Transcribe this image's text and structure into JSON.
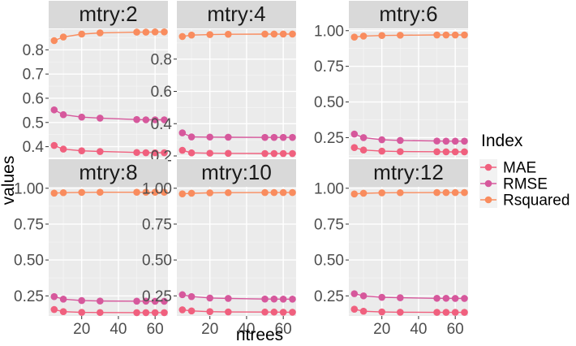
{
  "chart_data": {
    "type": "line",
    "xlabel": "ntrees",
    "ylabel": "values",
    "x": [
      5,
      10,
      20,
      30,
      50,
      55,
      60,
      65
    ],
    "xlim": [
      2,
      67
    ],
    "xticks": [
      20,
      40,
      60
    ],
    "legend": {
      "title": "Index",
      "position": "right",
      "entries": [
        {
          "name": "MAE",
          "color": "#f0607e"
        },
        {
          "name": "RMSE",
          "color": "#d6589c"
        },
        {
          "name": "Rsquared",
          "color": "#f98c5e"
        }
      ]
    },
    "panels": [
      {
        "title": "mtry:2",
        "ylim": [
          0.355,
          0.885
        ],
        "yticks": [
          0.4,
          0.5,
          0.6,
          0.7,
          0.8
        ],
        "ytick_labels": [
          "0.4",
          "0.5",
          "0.6",
          "0.7",
          "0.8"
        ],
        "series": [
          {
            "name": "MAE",
            "values": [
              0.405,
              0.39,
              0.383,
              0.38,
              0.376,
              0.375,
              0.375,
              0.375
            ]
          },
          {
            "name": "RMSE",
            "values": [
              0.552,
              0.532,
              0.522,
              0.518,
              0.512,
              0.511,
              0.511,
              0.511
            ]
          },
          {
            "name": "Rsquared",
            "values": [
              0.838,
              0.853,
              0.865,
              0.87,
              0.873,
              0.873,
              0.874,
              0.874
            ]
          }
        ]
      },
      {
        "title": "mtry:4",
        "ylim": [
          0.19,
          0.985
        ],
        "yticks": [
          0.2,
          0.4,
          0.6,
          0.8
        ],
        "ytick_labels": [
          "0.2",
          "0.4",
          "0.6",
          "0.8"
        ],
        "series": [
          {
            "name": "MAE",
            "values": [
              0.235,
              0.219,
              0.217,
              0.216,
              0.215,
              0.215,
              0.215,
              0.215
            ]
          },
          {
            "name": "RMSE",
            "values": [
              0.343,
              0.318,
              0.317,
              0.316,
              0.315,
              0.315,
              0.315,
              0.315
            ]
          },
          {
            "name": "Rsquared",
            "values": [
              0.94,
              0.949,
              0.952,
              0.954,
              0.955,
              0.955,
              0.955,
              0.955
            ]
          }
        ]
      },
      {
        "title": "mtry:6",
        "ylim": [
          0.11,
          1.01
        ],
        "yticks": [
          0.25,
          0.5,
          0.75,
          1.0
        ],
        "ytick_labels": [
          "0.25",
          "0.50",
          "0.75",
          "1.00"
        ],
        "series": [
          {
            "name": "MAE",
            "values": [
              0.18,
              0.163,
              0.155,
              0.152,
              0.151,
              0.15,
              0.15,
              0.15
            ]
          },
          {
            "name": "RMSE",
            "values": [
              0.275,
              0.25,
              0.235,
              0.23,
              0.226,
              0.225,
              0.225,
              0.225
            ]
          },
          {
            "name": "Rsquared",
            "values": [
              0.955,
              0.962,
              0.966,
              0.968,
              0.97,
              0.97,
              0.97,
              0.97
            ]
          }
        ]
      },
      {
        "title": "mtry:8",
        "ylim": [
          0.11,
          1.01
        ],
        "yticks": [
          0.25,
          0.5,
          0.75,
          1.0
        ],
        "ytick_labels": [
          "0.25",
          "0.50",
          "0.75",
          "1.00"
        ],
        "series": [
          {
            "name": "MAE",
            "values": [
              0.155,
              0.14,
              0.135,
              0.134,
              0.133,
              0.133,
              0.133,
              0.133
            ]
          },
          {
            "name": "RMSE",
            "values": [
              0.245,
              0.227,
              0.217,
              0.214,
              0.213,
              0.213,
              0.212,
              0.212
            ]
          },
          {
            "name": "Rsquared",
            "values": [
              0.966,
              0.969,
              0.971,
              0.972,
              0.972,
              0.972,
              0.972,
              0.972
            ]
          }
        ]
      },
      {
        "title": "mtry:10",
        "ylim": [
          0.11,
          1.01
        ],
        "yticks": [
          0.25,
          0.5,
          0.75,
          1.0
        ],
        "ytick_labels": [
          "0.25",
          "0.50",
          "0.75",
          "1.00"
        ],
        "series": [
          {
            "name": "MAE",
            "values": [
              0.153,
              0.145,
              0.14,
              0.138,
              0.137,
              0.137,
              0.136,
              0.136
            ]
          },
          {
            "name": "RMSE",
            "values": [
              0.258,
              0.245,
              0.235,
              0.232,
              0.228,
              0.228,
              0.227,
              0.227
            ]
          },
          {
            "name": "Rsquared",
            "values": [
              0.961,
              0.965,
              0.968,
              0.969,
              0.97,
              0.97,
              0.97,
              0.97
            ]
          }
        ]
      },
      {
        "title": "mtry:12",
        "ylim": [
          0.11,
          1.01
        ],
        "yticks": [
          0.25,
          0.5,
          0.75,
          1.0
        ],
        "ytick_labels": [
          "0.25",
          "0.50",
          "0.75",
          "1.00"
        ],
        "series": [
          {
            "name": "MAE",
            "values": [
              0.157,
              0.143,
              0.138,
              0.136,
              0.135,
              0.135,
              0.135,
              0.135
            ]
          },
          {
            "name": "RMSE",
            "values": [
              0.265,
              0.25,
              0.24,
              0.237,
              0.233,
              0.233,
              0.232,
              0.232
            ]
          },
          {
            "name": "Rsquared",
            "values": [
              0.96,
              0.965,
              0.968,
              0.969,
              0.97,
              0.97,
              0.97,
              0.97
            ]
          }
        ]
      }
    ]
  }
}
